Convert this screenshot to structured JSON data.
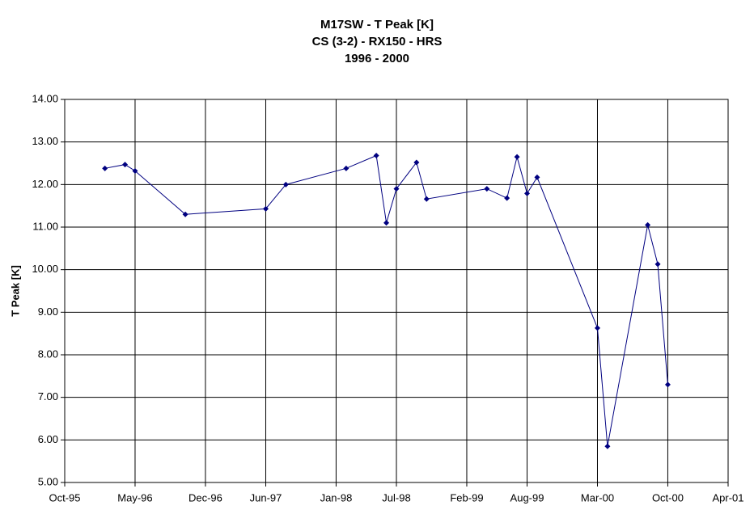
{
  "chart_data": {
    "type": "line",
    "title": [
      "M17SW - T Peak [K]",
      "CS (3-2) - RX150 - HRS",
      "1996 - 2000"
    ],
    "y_label": "T Peak [K]",
    "x": [
      "1996-02",
      "1996-04",
      "1996-05",
      "1996-10",
      "1997-06",
      "1997-08",
      "1998-02",
      "1998-05",
      "1998-06",
      "1998-07",
      "1998-09",
      "1998-10",
      "1999-04",
      "1999-06",
      "1999-07",
      "1999-08",
      "1999-09",
      "2000-03",
      "2000-04",
      "2000-08",
      "2000-09",
      "2000-10"
    ],
    "values": [
      12.38,
      12.47,
      12.32,
      11.3,
      11.43,
      12.0,
      12.38,
      12.68,
      11.1,
      11.9,
      12.52,
      11.66,
      11.9,
      11.68,
      12.65,
      11.79,
      12.17,
      8.63,
      5.85,
      11.05,
      10.13,
      7.3
    ],
    "color": "#000080",
    "xlim": [
      "1995-10",
      "2001-04"
    ],
    "xticks": [
      {
        "value": "1995-10",
        "label": "Oct-95"
      },
      {
        "value": "1996-05",
        "label": "May-96"
      },
      {
        "value": "1996-12",
        "label": "Dec-96"
      },
      {
        "value": "1997-06",
        "label": "Jun-97"
      },
      {
        "value": "1998-01",
        "label": "Jan-98"
      },
      {
        "value": "1998-07",
        "label": "Jul-98"
      },
      {
        "value": "1999-02",
        "label": "Feb-99"
      },
      {
        "value": "1999-08",
        "label": "Aug-99"
      },
      {
        "value": "2000-03",
        "label": "Mar-00"
      },
      {
        "value": "2000-10",
        "label": "Oct-00"
      },
      {
        "value": "2001-04",
        "label": "Apr-01"
      }
    ],
    "ylim": [
      5,
      14
    ],
    "yticks": [
      {
        "value": 5,
        "label": "5.00"
      },
      {
        "value": 6,
        "label": "6.00"
      },
      {
        "value": 7,
        "label": "7.00"
      },
      {
        "value": 8,
        "label": "8.00"
      },
      {
        "value": 9,
        "label": "9.00"
      },
      {
        "value": 10,
        "label": "10.00"
      },
      {
        "value": 11,
        "label": "11.00"
      },
      {
        "value": 12,
        "label": "12.00"
      },
      {
        "value": 13,
        "label": "13.00"
      },
      {
        "value": 14,
        "label": "14.00"
      }
    ],
    "grid": true
  }
}
